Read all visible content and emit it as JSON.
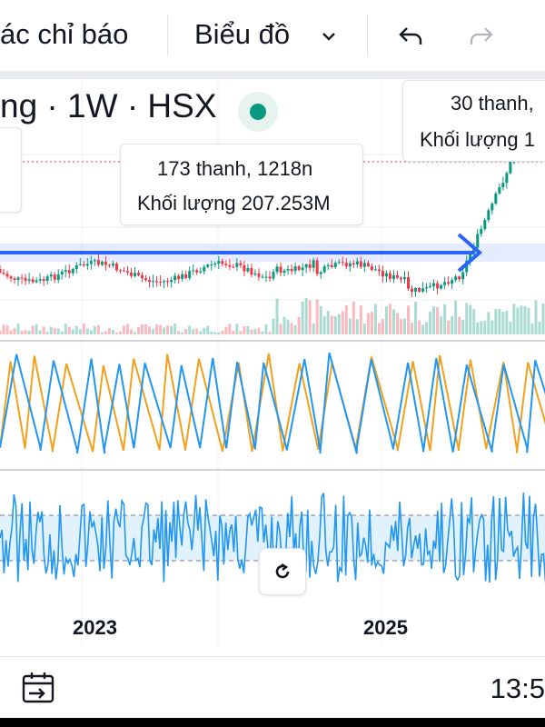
{
  "toolbar": {
    "indicators_label": "ác chỉ báo",
    "chart_type_label": "Biểu đồ"
  },
  "symbol": {
    "text": "ng · 1W · HSX",
    "live_color": "#089981"
  },
  "tooltips": {
    "measure": {
      "line1": "173 thanh, 1218n",
      "line2": "Khối lượng 207.253M"
    },
    "right": {
      "line1": "30 thanh,",
      "line2": "Khối lượng 1"
    }
  },
  "axis": {
    "x_labels": [
      "2023",
      "2025"
    ]
  },
  "status": {
    "time": "13:5"
  },
  "icons": [
    "chevron-down-icon",
    "undo-icon",
    "redo-icon",
    "reset-view-icon",
    "calendar-icon"
  ],
  "colors": {
    "up": "#089981",
    "down": "#f23645",
    "arrow": "#2962ff",
    "stoch_k": "#2196f3",
    "stoch_d": "#f0a11d",
    "band": "#d6ecfb"
  }
}
